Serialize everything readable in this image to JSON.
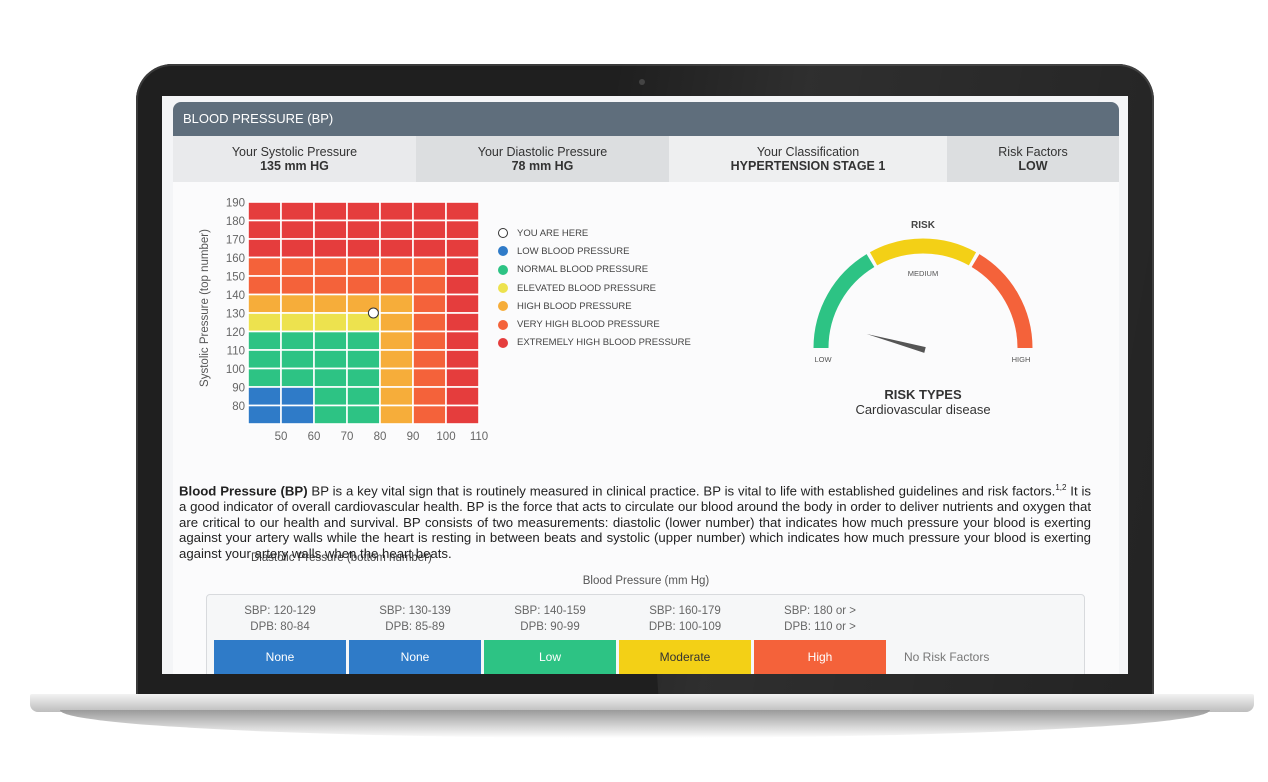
{
  "header": {
    "title": "BLOOD PRESSURE (BP)"
  },
  "summary": {
    "systolic_label": "Your Systolic Pressure",
    "systolic_value": "135 mm HG",
    "diastolic_label": "Your Diastolic Pressure",
    "diastolic_value": "78 mm HG",
    "classification_label": "Your Classification",
    "classification_value": "HYPERTENSION STAGE 1",
    "risk_label": "Risk Factors",
    "risk_value": "LOW"
  },
  "chart_data": {
    "type": "heatmap",
    "xlabel": "Diastolic Pressure (bottom number)",
    "ylabel": "Systolic Pressure (top number)",
    "x_ticks": [
      "50",
      "60",
      "70",
      "80",
      "90",
      "100",
      "110"
    ],
    "y_ticks": [
      "190",
      "180",
      "170",
      "160",
      "150",
      "140",
      "130",
      "120",
      "110",
      "100",
      "90",
      "80"
    ],
    "marker": {
      "diastolic": 78,
      "systolic": 135
    },
    "rows_top_to_bottom": [
      [
        "E",
        "E",
        "E",
        "E",
        "E",
        "E",
        "E"
      ],
      [
        "E",
        "E",
        "E",
        "E",
        "E",
        "E",
        "E"
      ],
      [
        "E",
        "E",
        "E",
        "E",
        "E",
        "E",
        "E"
      ],
      [
        "V",
        "V",
        "V",
        "V",
        "V",
        "V",
        "E"
      ],
      [
        "V",
        "V",
        "V",
        "V",
        "V",
        "V",
        "E"
      ],
      [
        "H",
        "H",
        "H",
        "H",
        "H",
        "V",
        "E"
      ],
      [
        "EL",
        "EL",
        "EL",
        "EL",
        "H",
        "V",
        "E"
      ],
      [
        "N",
        "N",
        "N",
        "N",
        "H",
        "V",
        "E"
      ],
      [
        "N",
        "N",
        "N",
        "N",
        "H",
        "V",
        "E"
      ],
      [
        "N",
        "N",
        "N",
        "N",
        "H",
        "V",
        "E"
      ],
      [
        "L",
        "L",
        "N",
        "N",
        "H",
        "V",
        "E"
      ],
      [
        "L",
        "L",
        "N",
        "N",
        "H",
        "V",
        "E"
      ]
    ],
    "colors": {
      "L": "#2f7bc8",
      "N": "#2dc384",
      "EL": "#ede24e",
      "H": "#f6ad3a",
      "V": "#f4623a",
      "E": "#e53d3d",
      "marker": "#ffffff"
    }
  },
  "legend": [
    {
      "label": "YOU ARE HERE",
      "color": "#ffffff",
      "hollow": true
    },
    {
      "label": "LOW BLOOD PRESSURE",
      "color": "#2f7bc8"
    },
    {
      "label": "NORMAL BLOOD PRESSURE",
      "color": "#2dc384"
    },
    {
      "label": "ELEVATED BLOOD PRESSURE",
      "color": "#ede24e"
    },
    {
      "label": "HIGH BLOOD PRESSURE",
      "color": "#f6ad3a"
    },
    {
      "label": "VERY HIGH BLOOD PRESSURE",
      "color": "#f4623a"
    },
    {
      "label": "EXTREMELY HIGH BLOOD PRESSURE",
      "color": "#e53d3d"
    }
  ],
  "gauge": {
    "title": "RISK",
    "low": "LOW",
    "medium": "MEDIUM",
    "high": "HIGH",
    "needle_fraction": 0.1,
    "colors": {
      "low": "#2dc384",
      "medium": "#f3d016",
      "high": "#f4623a"
    }
  },
  "risk_types": {
    "title": "RISK TYPES",
    "value": "Cardiovascular disease"
  },
  "description": {
    "term": "Blood Pressure (BP)",
    "part1": " BP is a key vital sign that is routinely measured in clinical practice. BP is vital to life with established guidelines and risk factors.",
    "sup": "1,2",
    "part2": " It is a good indicator of overall cardiovascular health. BP is the force that acts to circulate our blood around the body in order to deliver nutrients and oxygen that are critical to our health and survival. BP consists of two measurements: diastolic (lower number) that indicates how much pressure your blood is exerting against your artery walls while the heart is resting in between beats and systolic (upper number) which indicates how much pressure your blood is exerting against your artery walls when the heart beats."
  },
  "bp_table": {
    "title": "Blood Pressure (mm Hg)",
    "columns": [
      {
        "sbp": "SBP: 120-129",
        "dpb": "DPB: 80-84",
        "risk": "None",
        "color": "#2f7bc8"
      },
      {
        "sbp": "SBP: 130-139",
        "dpb": "DPB: 85-89",
        "risk": "None",
        "color": "#2f7bc8"
      },
      {
        "sbp": "SBP: 140-159",
        "dpb": "DPB: 90-99",
        "risk": "Low",
        "color": "#2dc384"
      },
      {
        "sbp": "SBP: 160-179",
        "dpb": "DPB: 100-109",
        "risk": "Moderate",
        "color": "#f3d016"
      },
      {
        "sbp": "SBP: 180 or >",
        "dpb": "DPB: 110 or >",
        "risk": "High",
        "color": "#f4623a"
      }
    ],
    "no_risk_label": "No Risk Factors"
  }
}
